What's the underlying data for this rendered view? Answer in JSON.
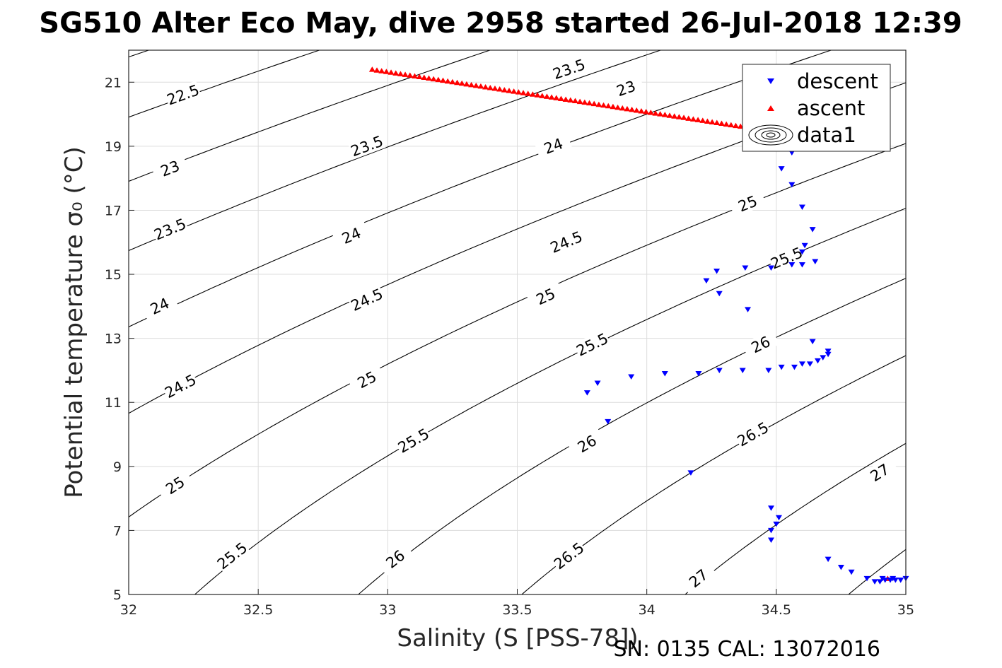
{
  "title": "SG510 Alter Eco May, dive 2958 started 26-Jul-2018 12:39",
  "footer": "SN: 0135  CAL: 13072016",
  "chart_data": {
    "type": "scatter",
    "xlabel": "Salinity (S [PSS-78])",
    "ylabel": "Potential temperature σ₀ (°C)",
    "xlim": [
      32,
      35
    ],
    "ylim": [
      5,
      22
    ],
    "xticks": [
      "32",
      "32.5",
      "33",
      "33.5",
      "34",
      "34.5",
      "35"
    ],
    "yticks": [
      "5",
      "7",
      "9",
      "11",
      "13",
      "15",
      "17",
      "19",
      "21"
    ],
    "grid": true,
    "legend_position": "top-right",
    "colors": {
      "descent": "#0000ff",
      "ascent": "#ff0000",
      "contour": "#000000"
    },
    "contour_levels": [
      22,
      22.5,
      23,
      23.5,
      24,
      24.5,
      25,
      25.5,
      26,
      26.5,
      27,
      27.5
    ],
    "contour_labels": [
      {
        "text": "22.5",
        "x": 32.21,
        "y": 20.6
      },
      {
        "text": "23",
        "x": 33.92,
        "y": 20.8
      },
      {
        "text": "23.5",
        "x": 33.7,
        "y": 21.4
      },
      {
        "text": "23",
        "x": 32.16,
        "y": 18.3
      },
      {
        "text": "23.5",
        "x": 32.92,
        "y": 19.0
      },
      {
        "text": "24",
        "x": 33.64,
        "y": 19.0
      },
      {
        "text": "23.5",
        "x": 32.16,
        "y": 16.4
      },
      {
        "text": "24",
        "x": 32.86,
        "y": 16.2
      },
      {
        "text": "24.5",
        "x": 33.69,
        "y": 16.0
      },
      {
        "text": "25",
        "x": 34.39,
        "y": 17.2
      },
      {
        "text": "24",
        "x": 32.12,
        "y": 14.0
      },
      {
        "text": "24.5",
        "x": 32.92,
        "y": 14.2
      },
      {
        "text": "25",
        "x": 33.61,
        "y": 14.3
      },
      {
        "text": "25.5",
        "x": 34.54,
        "y": 15.5
      },
      {
        "text": "24.5",
        "x": 32.2,
        "y": 11.5
      },
      {
        "text": "25",
        "x": 32.92,
        "y": 11.7
      },
      {
        "text": "25.5",
        "x": 33.79,
        "y": 12.8
      },
      {
        "text": "26",
        "x": 34.44,
        "y": 12.8
      },
      {
        "text": "25",
        "x": 32.18,
        "y": 8.4
      },
      {
        "text": "25.5",
        "x": 33.1,
        "y": 9.8
      },
      {
        "text": "26",
        "x": 33.77,
        "y": 9.7
      },
      {
        "text": "26.5",
        "x": 34.41,
        "y": 10.0
      },
      {
        "text": "25.5",
        "x": 32.4,
        "y": 6.2
      },
      {
        "text": "26",
        "x": 33.03,
        "y": 6.1
      },
      {
        "text": "26.5",
        "x": 33.7,
        "y": 6.2
      },
      {
        "text": "27",
        "x": 34.9,
        "y": 8.8
      },
      {
        "text": "27",
        "x": 34.2,
        "y": 5.5
      }
    ],
    "series": [
      {
        "name": "descent",
        "marker": "down-triangle",
        "x": [
          34.57,
          34.56,
          34.52,
          34.56,
          34.6,
          34.64,
          34.61,
          34.6,
          34.6,
          34.65,
          34.56,
          34.48,
          34.38,
          34.23,
          34.27,
          34.28,
          34.39,
          34.64,
          34.7,
          34.7,
          34.68,
          34.66,
          34.63,
          34.6,
          34.57,
          34.52,
          34.47,
          34.37,
          34.28,
          34.2,
          34.07,
          33.94,
          33.81,
          33.77,
          33.85,
          34.17,
          34.48,
          34.51,
          34.5,
          34.48,
          34.48,
          34.7,
          34.75,
          34.79,
          34.85,
          34.88,
          34.9,
          34.92,
          34.94,
          34.96,
          34.98,
          35.0,
          34.91,
          34.95
        ],
        "y": [
          19.1,
          18.8,
          18.3,
          17.8,
          17.1,
          16.4,
          15.9,
          15.7,
          15.3,
          15.4,
          15.3,
          15.2,
          15.2,
          14.8,
          15.1,
          14.4,
          13.9,
          12.9,
          12.6,
          12.5,
          12.4,
          12.3,
          12.2,
          12.2,
          12.1,
          12.1,
          12.0,
          12.0,
          12.0,
          11.9,
          11.9,
          11.8,
          11.6,
          11.3,
          10.4,
          8.8,
          7.7,
          7.4,
          7.2,
          7.0,
          6.7,
          6.1,
          5.85,
          5.7,
          5.5,
          5.4,
          5.4,
          5.45,
          5.45,
          5.45,
          5.45,
          5.5,
          5.5,
          5.5
        ]
      },
      {
        "name": "ascent",
        "marker": "up-triangle",
        "x_start": 32.94,
        "y_start": 21.4,
        "x_end": 34.38,
        "y_end": 19.6,
        "count": 80,
        "extra_x": [
          34.93
        ],
        "extra_y": [
          5.5
        ]
      },
      {
        "name": "data1",
        "marker": "contour"
      }
    ]
  }
}
